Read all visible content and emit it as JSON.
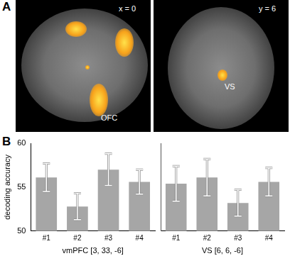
{
  "panel_a": {
    "label": "A",
    "images": [
      {
        "caption": "x = 0",
        "annotations": [
          "OFC"
        ]
      },
      {
        "caption": "y = 6",
        "annotations": [
          "VS"
        ]
      }
    ]
  },
  "panel_b_label": "B",
  "chart_data": [
    {
      "type": "bar",
      "xlabel": "vmPFC [3, 33, -6]",
      "ylabel": "decoding accuracy",
      "categories": [
        "#1",
        "#2",
        "#3",
        "#4"
      ],
      "values": [
        56.1,
        52.8,
        57.0,
        55.6
      ],
      "errors": [
        1.6,
        1.5,
        1.8,
        1.4
      ],
      "color": "#a6a6a6",
      "ylim": [
        50,
        60
      ],
      "yticks": [
        50,
        55,
        60
      ],
      "grid": false
    },
    {
      "type": "bar",
      "xlabel": "VS [6, 6, -6]",
      "categories": [
        "#1",
        "#2",
        "#3",
        "#4"
      ],
      "values": [
        55.4,
        56.1,
        53.2,
        55.6
      ],
      "errors": [
        2.0,
        2.1,
        1.5,
        1.6
      ],
      "color": "#a6a6a6",
      "ylim": [
        50,
        60
      ],
      "yticks": [
        50,
        55,
        60
      ],
      "grid": false,
      "tick_labels": "x"
    }
  ]
}
